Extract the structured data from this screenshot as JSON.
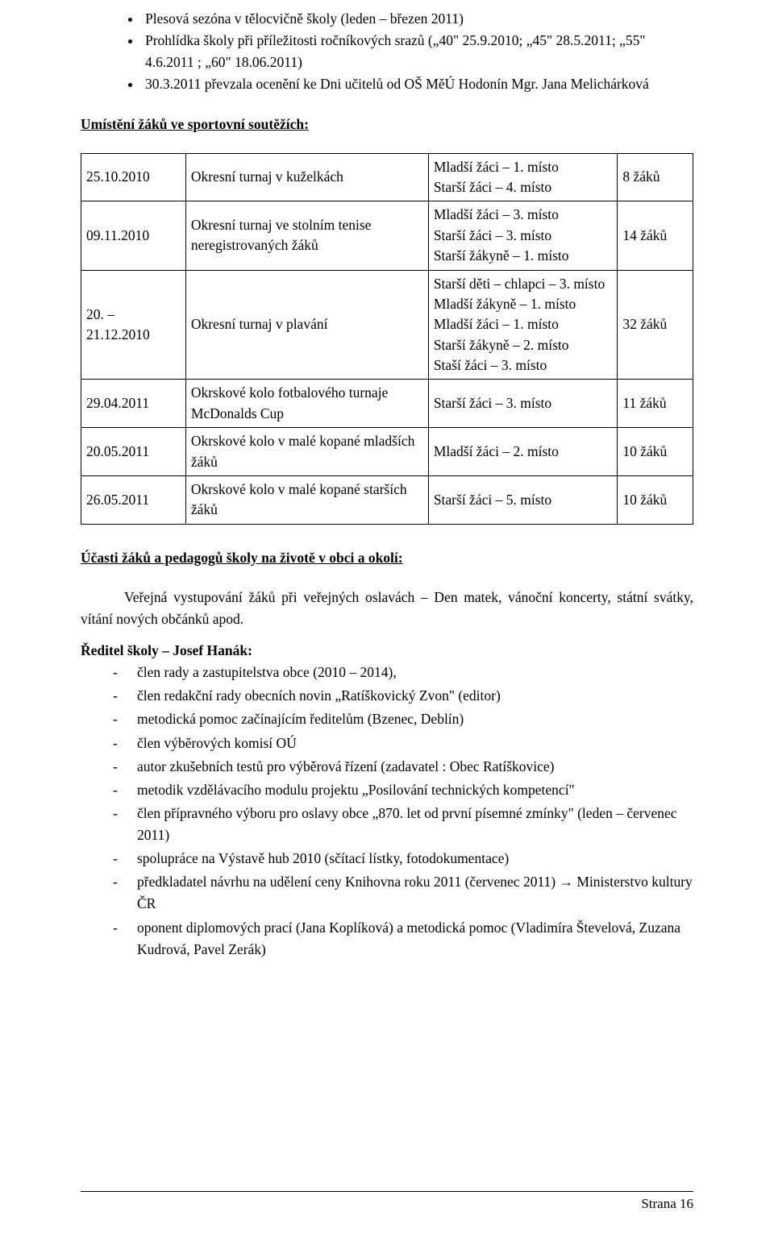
{
  "bullets_top": {
    "items": [
      "Plesová sezóna v tělocvičně školy (leden – březen 2011)",
      "Prohlídka školy při příležitosti ročníkových srazů („40\" 25.9.2010; „45\" 28.5.2011; „55\" 4.6.2011 ; „60\" 18.06.2011)",
      "30.3.2011 převzala ocenění ke Dni učitelů od OŠ MěÚ Hodonín Mgr. Jana Melichárková"
    ]
  },
  "sports_section": {
    "heading": "Umístění žáků ve sportovní soutěžích:"
  },
  "results_table": {
    "rows": [
      {
        "date": "25.10.2010",
        "event": "Okresní turnaj v kuželkách",
        "placement": "Mladší žáci – 1. místo\nStarší žáci – 4. místo",
        "count": "8 žáků"
      },
      {
        "date": "09.11.2010",
        "event": "Okresní turnaj ve stolním tenise neregistrovaných žáků",
        "placement": "Mladší žáci – 3. místo\nStarší žáci – 3. místo\nStarší žákyně – 1. místo",
        "count": "14 žáků"
      },
      {
        "date": "20. – 21.12.2010",
        "event": "Okresní turnaj v plavání",
        "placement": "Starší děti – chlapci – 3. místo\nMladší žákyně – 1. místo\nMladší žáci – 1. místo\nStarší žákyně – 2. místo\nStaší žáci – 3. místo",
        "count": "32 žáků"
      },
      {
        "date": "29.04.2011",
        "event": "Okrskové kolo fotbalového turnaje McDonalds Cup",
        "placement": "Starší žáci – 3. místo",
        "count": "11 žáků"
      },
      {
        "date": "20.05.2011",
        "event": "Okrskové kolo v malé kopané mladších žáků",
        "placement": "Mladší žáci – 2. místo",
        "count": "10 žáků"
      },
      {
        "date": "26.05.2011",
        "event": "Okrskové kolo v malé kopané starších žáků",
        "placement": "Starší žáci – 5. místo",
        "count": "10 žáků"
      }
    ]
  },
  "participation_section": {
    "heading": "Účasti žáků a pedagogů školy na životě v obci a okolí:",
    "intro": "Veřejná vystupování žáků při veřejných oslavách – Den matek, vánoční koncerty, státní svátky, vítání nových občánků  apod."
  },
  "director_section": {
    "heading": "Ředitel školy – Josef Hanák:",
    "items": [
      "člen rady  a zastupitelstva obce (2010 – 2014),",
      "člen redakční rady obecních novin „Ratíškovický Zvon\" (editor)",
      "metodická pomoc začínajícím ředitelům (Bzenec, Deblín)",
      "člen výběrových komisí OÚ",
      "autor zkušebních testů pro výběrová řízení (zadavatel : Obec Ratíškovice)",
      "metodik vzdělávacího modulu  projektu „Posilování technických kompetencí\"",
      "člen přípravného výboru pro oslavy obce „870. let od první písemné zmínky\" (leden – červenec 2011)",
      "spolupráce na Výstavě hub 2010 (sčítací lístky, fotodokumentace)",
      "předkladatel návrhu na udělení ceny Knihovna roku 2011 (červenec 2011) → Ministerstvo kultury ČR",
      "oponent diplomových prací (Jana Koplíková) a metodická pomoc (Vladimíra Števelová, Zuzana Kudrová, Pavel Zerák)"
    ]
  },
  "footer": {
    "text": "Strana  16"
  }
}
